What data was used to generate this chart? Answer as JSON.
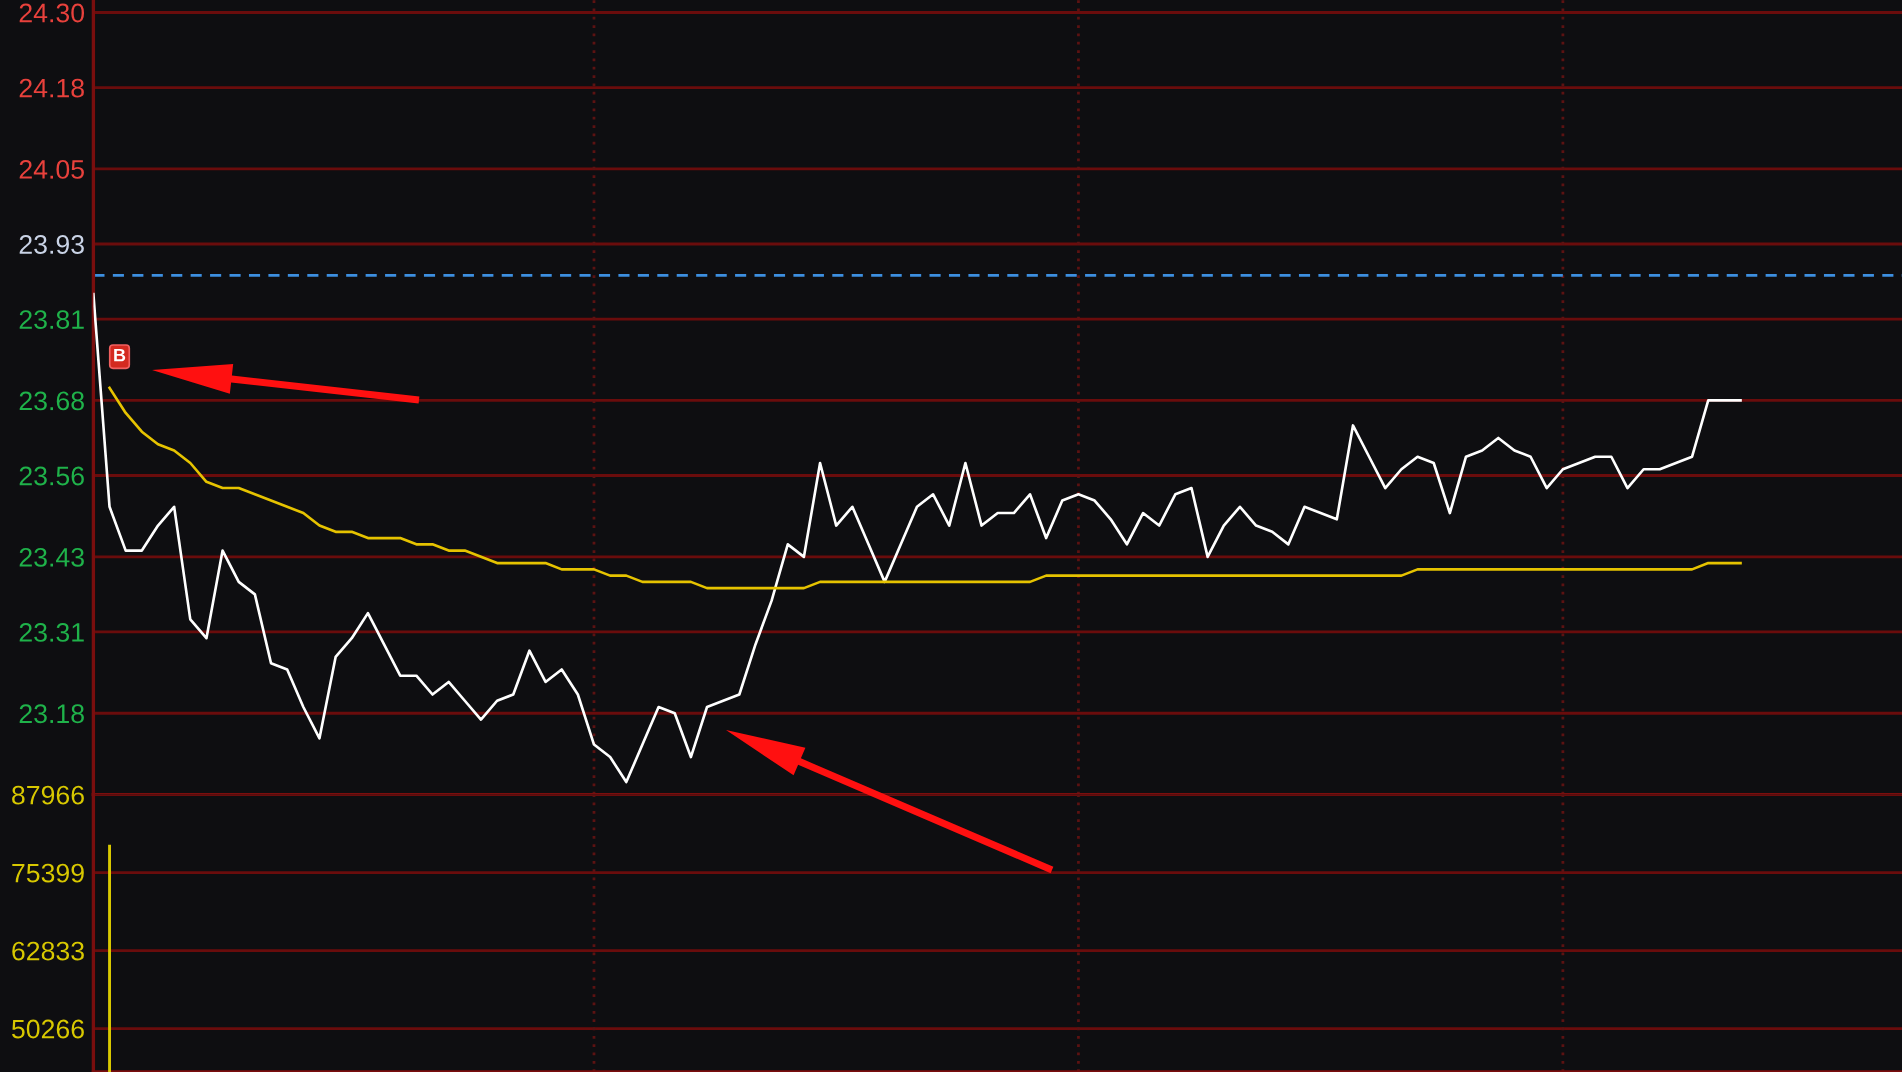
{
  "chart_data": [
    {
      "type": "line",
      "categories": [
        null,
        null,
        null,
        null,
        null,
        null,
        null,
        null,
        null,
        null,
        null,
        null,
        null,
        null,
        null,
        null,
        null,
        null,
        null,
        null,
        null,
        null,
        null,
        null,
        null,
        null,
        null,
        null,
        null,
        null,
        null,
        null,
        null,
        null,
        null,
        null,
        null,
        null,
        null,
        null,
        null,
        null,
        null,
        null,
        null,
        null,
        null,
        null,
        null,
        null,
        null,
        null,
        null,
        null,
        null,
        null,
        null,
        null,
        null,
        null,
        null,
        null,
        null,
        null,
        null,
        null,
        null,
        null,
        null,
        null,
        null,
        null,
        null,
        null,
        null,
        null,
        null,
        null,
        null,
        null,
        null,
        null,
        null,
        null,
        null,
        null,
        null,
        null,
        null,
        null,
        null,
        null,
        null,
        null,
        null,
        null,
        null,
        null,
        null,
        null,
        null,
        null,
        null,
        null,
        null,
        null,
        null,
        null,
        null,
        null,
        null,
        null,
        null
      ],
      "series": [
        {
          "color": "#ffffff",
          "values": [
            23.85,
            23.51,
            23.44,
            23.44,
            23.48,
            23.51,
            23.33,
            23.3,
            23.44,
            23.39,
            23.37,
            23.26,
            23.25,
            23.19,
            23.14,
            23.27,
            23.3,
            23.34,
            23.29,
            23.24,
            23.24,
            23.21,
            23.23,
            23.2,
            23.17,
            23.2,
            23.21,
            23.28,
            23.23,
            23.25,
            23.21,
            23.13,
            23.11,
            23.07,
            23.13,
            23.19,
            23.18,
            23.11,
            23.19,
            23.2,
            23.21,
            23.29,
            23.36,
            23.45,
            23.43,
            23.58,
            23.48,
            23.51,
            23.45,
            23.39,
            23.45,
            23.51,
            23.53,
            23.48,
            23.58,
            23.48,
            23.5,
            23.5,
            23.53,
            23.46,
            23.52,
            23.53,
            23.52,
            23.49,
            23.45,
            23.5,
            23.48,
            23.53,
            23.54,
            23.43,
            23.48,
            23.51,
            23.48,
            23.47,
            23.45,
            23.51,
            23.5,
            23.49,
            23.64,
            23.59,
            23.54,
            23.57,
            23.59,
            23.58,
            23.5,
            23.59,
            23.6,
            23.62,
            23.6,
            23.59,
            23.54,
            23.57,
            23.58,
            23.59,
            23.59,
            23.54,
            23.57,
            23.57,
            23.58,
            23.59,
            23.68,
            23.68,
            23.68,
            null,
            null,
            null,
            null,
            null,
            null,
            null,
            null,
            null,
            null
          ]
        },
        {
          "color": "#e6c300",
          "values": [
            null,
            23.7,
            23.66,
            23.63,
            23.61,
            23.6,
            23.58,
            23.55,
            23.54,
            23.54,
            23.53,
            23.52,
            23.51,
            23.5,
            23.48,
            23.47,
            23.47,
            23.46,
            23.46,
            23.46,
            23.45,
            23.45,
            23.44,
            23.44,
            23.43,
            23.42,
            23.42,
            23.42,
            23.42,
            23.41,
            23.41,
            23.41,
            23.4,
            23.4,
            23.39,
            23.39,
            23.39,
            23.39,
            23.38,
            23.38,
            23.38,
            23.38,
            23.38,
            23.38,
            23.38,
            23.39,
            23.39,
            23.39,
            23.39,
            23.39,
            23.39,
            23.39,
            23.39,
            23.39,
            23.39,
            23.39,
            23.39,
            23.39,
            23.39,
            23.4,
            23.4,
            23.4,
            23.4,
            23.4,
            23.4,
            23.4,
            23.4,
            23.4,
            23.4,
            23.4,
            23.4,
            23.4,
            23.4,
            23.4,
            23.4,
            23.4,
            23.4,
            23.4,
            23.4,
            23.4,
            23.4,
            23.4,
            23.41,
            23.41,
            23.41,
            23.41,
            23.41,
            23.41,
            23.41,
            23.41,
            23.41,
            23.41,
            23.41,
            23.41,
            23.41,
            23.41,
            23.41,
            23.41,
            23.41,
            23.41,
            23.42,
            23.42,
            23.42,
            null,
            null,
            null,
            null,
            null,
            null,
            null,
            null,
            null,
            null
          ]
        }
      ],
      "ylim": [
        23.05,
        24.32
      ],
      "yticks": [
        23.18,
        23.31,
        23.43,
        23.56,
        23.68,
        23.81,
        23.93,
        24.05,
        24.18,
        {
          "value": 24.3,
          "label": "24.30"
        }
      ],
      "grid": true,
      "tick_labels": "y",
      "ref_lines": [
        {
          "axis": "y",
          "value": 23.88,
          "color": "#3d8fe0",
          "line_style": "dashed"
        }
      ],
      "annotations": [
        {
          "text": "B",
          "y": 23.75
        }
      ]
    },
    {
      "type": "bar",
      "categories": [
        null,
        null,
        null,
        null,
        null,
        null,
        null,
        null,
        null,
        null,
        null,
        null,
        null,
        null,
        null,
        null,
        null,
        null,
        null,
        null,
        null,
        null,
        null,
        null,
        null,
        null,
        null,
        null,
        null,
        null,
        null,
        null,
        null,
        null,
        null,
        null,
        null,
        null,
        null,
        null,
        null,
        null,
        null,
        null,
        null,
        null,
        null,
        null,
        null,
        null,
        null,
        null,
        null,
        null,
        null,
        null,
        null,
        null,
        null,
        null,
        null,
        null,
        null,
        null,
        null,
        null,
        null,
        null,
        null,
        null,
        null,
        null,
        null,
        null,
        null,
        null,
        null,
        null,
        null,
        null,
        null,
        null,
        null,
        null,
        null,
        null,
        null,
        null,
        null,
        null,
        null,
        null,
        null,
        null,
        null,
        null,
        null,
        null,
        null,
        null,
        null,
        null,
        null,
        null,
        null,
        null,
        null,
        null,
        null,
        null,
        null,
        null,
        null
      ],
      "values": [
        null,
        79900,
        null,
        null,
        null,
        null,
        null,
        null,
        null,
        null,
        null,
        null,
        null,
        null,
        null,
        null,
        null,
        null,
        null,
        null,
        null,
        null,
        null,
        null,
        null,
        null,
        null,
        null,
        null,
        null,
        null,
        null,
        null,
        null,
        null,
        null,
        null,
        null,
        null,
        null,
        null,
        null,
        null,
        null,
        null,
        null,
        null,
        null,
        null,
        null,
        null,
        null,
        null,
        null,
        null,
        null,
        null,
        null,
        null,
        null,
        null,
        null,
        null,
        null,
        null,
        null,
        null,
        null,
        null,
        null,
        null,
        null,
        null,
        null,
        null,
        null,
        null,
        null,
        null,
        null,
        null,
        null,
        null,
        null,
        null,
        null,
        null,
        null,
        null,
        null,
        null,
        null,
        null,
        null,
        null,
        null,
        null,
        null,
        null,
        null,
        null,
        null,
        null,
        null,
        null,
        null,
        null,
        null,
        null,
        null,
        null,
        null,
        null
      ],
      "color": "#d8c800",
      "ylim": [
        43270,
        87966
      ],
      "yticks": [
        50266,
        62833,
        75399,
        87966
      ],
      "grid": true,
      "tick_labels": "y"
    }
  ]
}
